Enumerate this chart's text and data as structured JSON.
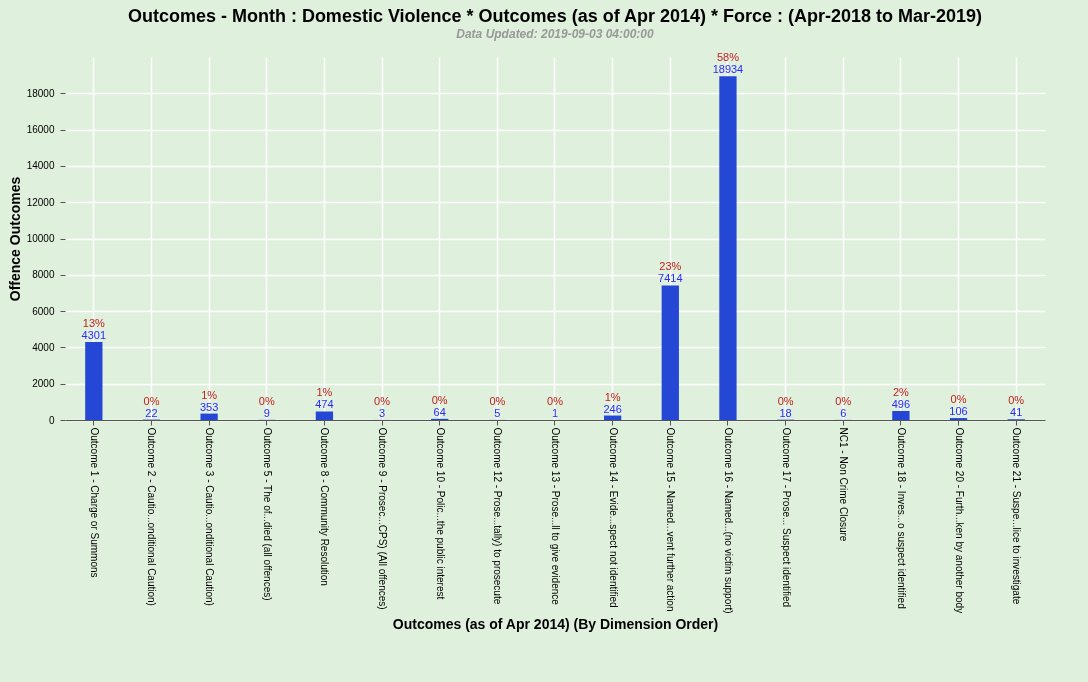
{
  "chart_data": {
    "type": "bar",
    "title": "Outcomes - Month : Domestic Violence * Outcomes (as of Apr 2014) * Force : (Apr-2018 to Mar-2019)",
    "subtitle": "Data Updated: 2019-09-03 04:00:00",
    "xlabel": "Outcomes (as of Apr 2014) (By Dimension Order)",
    "ylabel": "Offence Outcomes",
    "categories": [
      "Outcome 1 - Charge or Summons",
      "Outcome 2 - Cautio...onditional Caution)",
      "Outcome 3 - Cautio...onditional Caution)",
      "Outcome 5 - The of...died (all offences)",
      "Outcome 8 - Community Resolution",
      "Outcome 9 - Prosec...CPS) (All offences)",
      "Outcome 10 - Polic...the public interest",
      "Outcome 12 - Prose...tally) to prosecute",
      "Outcome 13 - Prose...ll to give evidence",
      "Outcome 14 - Evide...spect not identified",
      "Outcome 15 - Named...vent further action",
      "Outcome 16 - Named...(no victim support)",
      "Outcome 17 - Prose... Suspect identified",
      "NC1 - Non Crime Closure",
      "Outcome 18 - Inves...o suspect identified",
      "Outcome 20 - Furth...ken by another body",
      "Outcome 21 - Suspe...lice to investigate"
    ],
    "values": [
      4301,
      22,
      353,
      9,
      474,
      3,
      64,
      5,
      1,
      246,
      7414,
      18934,
      18,
      6,
      496,
      106,
      41
    ],
    "color": "#2547d6",
    "ylim": [
      0,
      20000
    ],
    "yticks": [
      0,
      2000,
      4000,
      6000,
      8000,
      10000,
      12000,
      14000,
      16000,
      18000
    ],
    "grid": true,
    "data_labels": true,
    "annotations": [
      {
        "text": "13%",
        "x": "Outcome 1 - Charge or Summons",
        "y": 4301
      },
      {
        "text": "0%",
        "x": "Outcome 2 - Cautio...onditional Caution)",
        "y": 22
      },
      {
        "text": "1%",
        "x": "Outcome 3 - Cautio...onditional Caution)",
        "y": 353
      },
      {
        "text": "0%",
        "x": "Outcome 5 - The of...died (all offences)",
        "y": 9
      },
      {
        "text": "1%",
        "x": "Outcome 8 - Community Resolution",
        "y": 474
      },
      {
        "text": "0%",
        "x": "Outcome 9 - Prosec...CPS) (All offences)",
        "y": 3
      },
      {
        "text": "0%",
        "x": "Outcome 10 - Polic...the public interest",
        "y": 64
      },
      {
        "text": "0%",
        "x": "Outcome 12 - Prose...tally) to prosecute",
        "y": 5
      },
      {
        "text": "0%",
        "x": "Outcome 13 - Prose...ll to give evidence",
        "y": 1
      },
      {
        "text": "1%",
        "x": "Outcome 14 - Evide...spect not identified",
        "y": 246
      },
      {
        "text": "23%",
        "x": "Outcome 15 - Named...vent further action",
        "y": 7414
      },
      {
        "text": "58%",
        "x": "Outcome 16 - Named...(no victim support)",
        "y": 18934
      },
      {
        "text": "0%",
        "x": "Outcome 17 - Prose... Suspect identified",
        "y": 18
      },
      {
        "text": "0%",
        "x": "NC1 - Non Crime Closure",
        "y": 6
      },
      {
        "text": "2%",
        "x": "Outcome 18 - Inves...o suspect identified",
        "y": 496
      },
      {
        "text": "0%",
        "x": "Outcome 20 - Furth...ken by another body",
        "y": 106
      },
      {
        "text": "0%",
        "x": "Outcome 21 - Suspe...lice to investigate",
        "y": 41
      }
    ]
  }
}
